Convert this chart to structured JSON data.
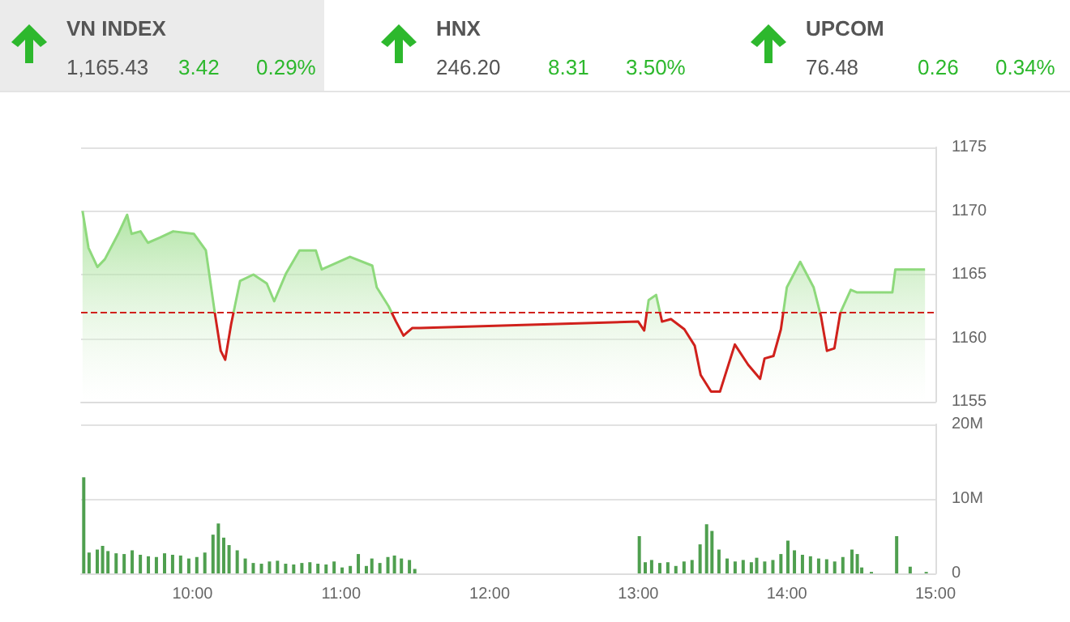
{
  "chart_data": [
    {
      "type": "other",
      "annotations": [
        "VN INDEX",
        "1,165.43",
        "3.42",
        "0.29%",
        "HNX",
        "246.20",
        "8.31",
        "3.50%",
        "UPCOM",
        "76.48",
        "0.26",
        "0.34%"
      ]
    },
    {
      "type": "area",
      "tick_labels": "y",
      "grid": "y",
      "xlim": [
        9.25,
        15
      ],
      "ylim": [
        1155,
        1175
      ],
      "yticks": [
        1155,
        1160,
        1165,
        1170,
        1175
      ],
      "ref_lines": [
        {
          "axis": "y",
          "value": 1162,
          "color": "#d0211c",
          "line_style": "dashed"
        }
      ],
      "series": [
        {
          "color": "#8ed97c",
          "x": [
            9.26,
            9.3,
            9.36,
            9.41,
            9.5,
            9.56,
            9.59,
            9.65,
            9.7,
            9.78,
            9.87,
            10.01,
            10.09,
            10.15,
            10.19,
            10.22,
            10.26,
            10.32,
            10.41,
            10.5,
            10.55,
            10.63,
            10.72,
            10.83,
            10.87,
            11.06,
            11.21,
            11.24,
            11.32,
            11.37,
            11.42,
            11.48,
            11.53,
            13.0,
            13.04,
            13.07,
            13.12,
            13.16,
            13.22,
            13.31,
            13.38,
            13.42,
            13.49,
            13.55,
            13.65,
            13.74,
            13.82,
            13.85,
            13.91,
            13.96,
            14.0,
            14.09,
            14.18,
            14.23,
            14.27,
            14.32,
            14.36,
            14.43,
            14.47,
            14.71,
            14.73,
            14.93
          ],
          "values": [
            1170,
            1167.1,
            1165.6,
            1166.2,
            1168.2,
            1169.7,
            1168.2,
            1168.4,
            1167.5,
            1167.9,
            1168.4,
            1168.2,
            1166.9,
            1162,
            1159,
            1158.3,
            1161.1,
            1164.5,
            1165,
            1164.3,
            1162.9,
            1165.1,
            1166.9,
            1166.9,
            1165.4,
            1166.4,
            1165.7,
            1164,
            1162.5,
            1161.3,
            1160.2,
            1160.8,
            1160.8,
            1161.3,
            1160.6,
            1163,
            1163.4,
            1161.3,
            1161.5,
            1160.7,
            1159.4,
            1157.1,
            1155.8,
            1155.8,
            1159.5,
            1157.9,
            1156.8,
            1158.4,
            1158.6,
            1160.7,
            1164,
            1166,
            1164,
            1161.7,
            1159,
            1159.2,
            1162,
            1163.8,
            1163.6,
            1163.6,
            1165.4,
            1165.4
          ]
        }
      ]
    },
    {
      "type": "bar",
      "grid": "y",
      "xlim": [
        9.25,
        15
      ],
      "xticks": [
        {
          "value": 10,
          "label": "10:00"
        },
        {
          "value": 11,
          "label": "11:00"
        },
        {
          "value": 12,
          "label": "12:00"
        },
        {
          "value": 13,
          "label": "13:00"
        },
        {
          "value": 14,
          "label": "14:00"
        },
        {
          "value": 15,
          "label": "15:00"
        }
      ],
      "ylim": [
        0,
        20
      ],
      "yticks": [
        {
          "value": 0,
          "label": "0"
        },
        {
          "value": 10,
          "label": "10M"
        },
        {
          "value": 20,
          "label": "20M"
        }
      ],
      "series": [
        {
          "color": "#4f9f4f",
          "x": [
            9.268,
            9.304,
            9.359,
            9.395,
            9.431,
            9.486,
            9.54,
            9.594,
            9.649,
            9.703,
            9.757,
            9.812,
            9.866,
            9.92,
            9.975,
            10.029,
            10.083,
            10.138,
            10.174,
            10.21,
            10.246,
            10.301,
            10.355,
            10.409,
            10.464,
            10.518,
            10.572,
            10.627,
            10.681,
            10.736,
            10.79,
            10.844,
            10.899,
            10.953,
            11.007,
            11.062,
            11.116,
            11.17,
            11.207,
            11.261,
            11.315,
            11.359,
            11.406,
            11.46,
            11.496,
            13.007,
            13.047,
            13.09,
            13.145,
            13.199,
            13.253,
            13.308,
            13.362,
            13.416,
            13.46,
            13.496,
            13.543,
            13.598,
            13.652,
            13.706,
            13.761,
            13.797,
            13.851,
            13.906,
            13.96,
            14.007,
            14.051,
            14.105,
            14.159,
            14.214,
            14.268,
            14.322,
            14.377,
            14.438,
            14.474,
            14.504,
            14.569,
            14.739,
            14.83,
            14.938
          ],
          "values": [
            12.9,
            2.8,
            3.2,
            3.7,
            3.0,
            2.7,
            2.6,
            3.1,
            2.5,
            2.3,
            2.2,
            2.7,
            2.5,
            2.4,
            2.0,
            2.2,
            2.8,
            5.2,
            6.7,
            4.8,
            3.8,
            3.1,
            2.0,
            1.4,
            1.3,
            1.6,
            1.7,
            1.3,
            1.2,
            1.4,
            1.5,
            1.3,
            1.2,
            1.6,
            0.8,
            1.0,
            2.6,
            1.0,
            2.0,
            1.4,
            2.2,
            2.4,
            2.0,
            1.8,
            0.6,
            5.0,
            1.5,
            1.8,
            1.4,
            1.5,
            1.0,
            1.6,
            1.8,
            3.9,
            6.6,
            5.7,
            3.2,
            2.0,
            1.6,
            1.8,
            1.5,
            2.1,
            1.6,
            1.8,
            2.6,
            4.4,
            3.1,
            2.5,
            2.3,
            2.0,
            1.9,
            1.6,
            2.2,
            3.2,
            2.6,
            0.8,
            0.2,
            5.0,
            0.9,
            0.2
          ]
        }
      ]
    }
  ]
}
